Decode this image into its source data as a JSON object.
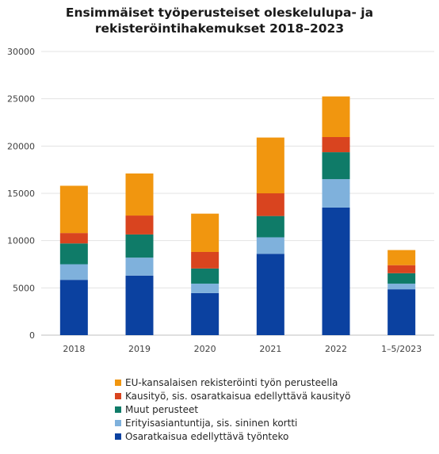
{
  "chart_data": {
    "type": "bar",
    "stacked": true,
    "title_line1": "Ensimmäiset työperusteiset oleskelulupa- ja",
    "title_line2": "rekisteröintihakemukset 2018–2023",
    "categories": [
      "2018",
      "2019",
      "2020",
      "2021",
      "2022",
      "1–5/2023"
    ],
    "ylim": [
      0,
      30000
    ],
    "yticks": [
      "0",
      "5000",
      "10000",
      "15000",
      "20000",
      "25000",
      "30000"
    ],
    "grid": true,
    "legend_position": "bottom",
    "series": [
      {
        "name": "Osaratkaisua edellyttävä työnteko",
        "color": "#0b41a0",
        "values": [
          5850,
          6300,
          4450,
          8600,
          13500,
          4850
        ]
      },
      {
        "name": "Erityisasiantuntija, sis. sininen kortti",
        "color": "#7fb1dc",
        "values": [
          1650,
          1900,
          1000,
          1750,
          3000,
          600
        ]
      },
      {
        "name": "Muut perusteet",
        "color": "#0f7b68",
        "values": [
          2200,
          2450,
          1600,
          2250,
          2850,
          1100
        ]
      },
      {
        "name": "Kausityö, sis. osaratkaisua edellyttävä kausityö",
        "color": "#d9441f",
        "values": [
          1100,
          2000,
          1750,
          2400,
          1600,
          850
        ]
      },
      {
        "name": "EU-kansalaisen rekisteröinti työn perusteella",
        "color": "#f1960f",
        "values": [
          5000,
          4450,
          4050,
          5900,
          4300,
          1600
        ]
      }
    ],
    "legend_order": [
      4,
      3,
      2,
      1,
      0
    ]
  }
}
